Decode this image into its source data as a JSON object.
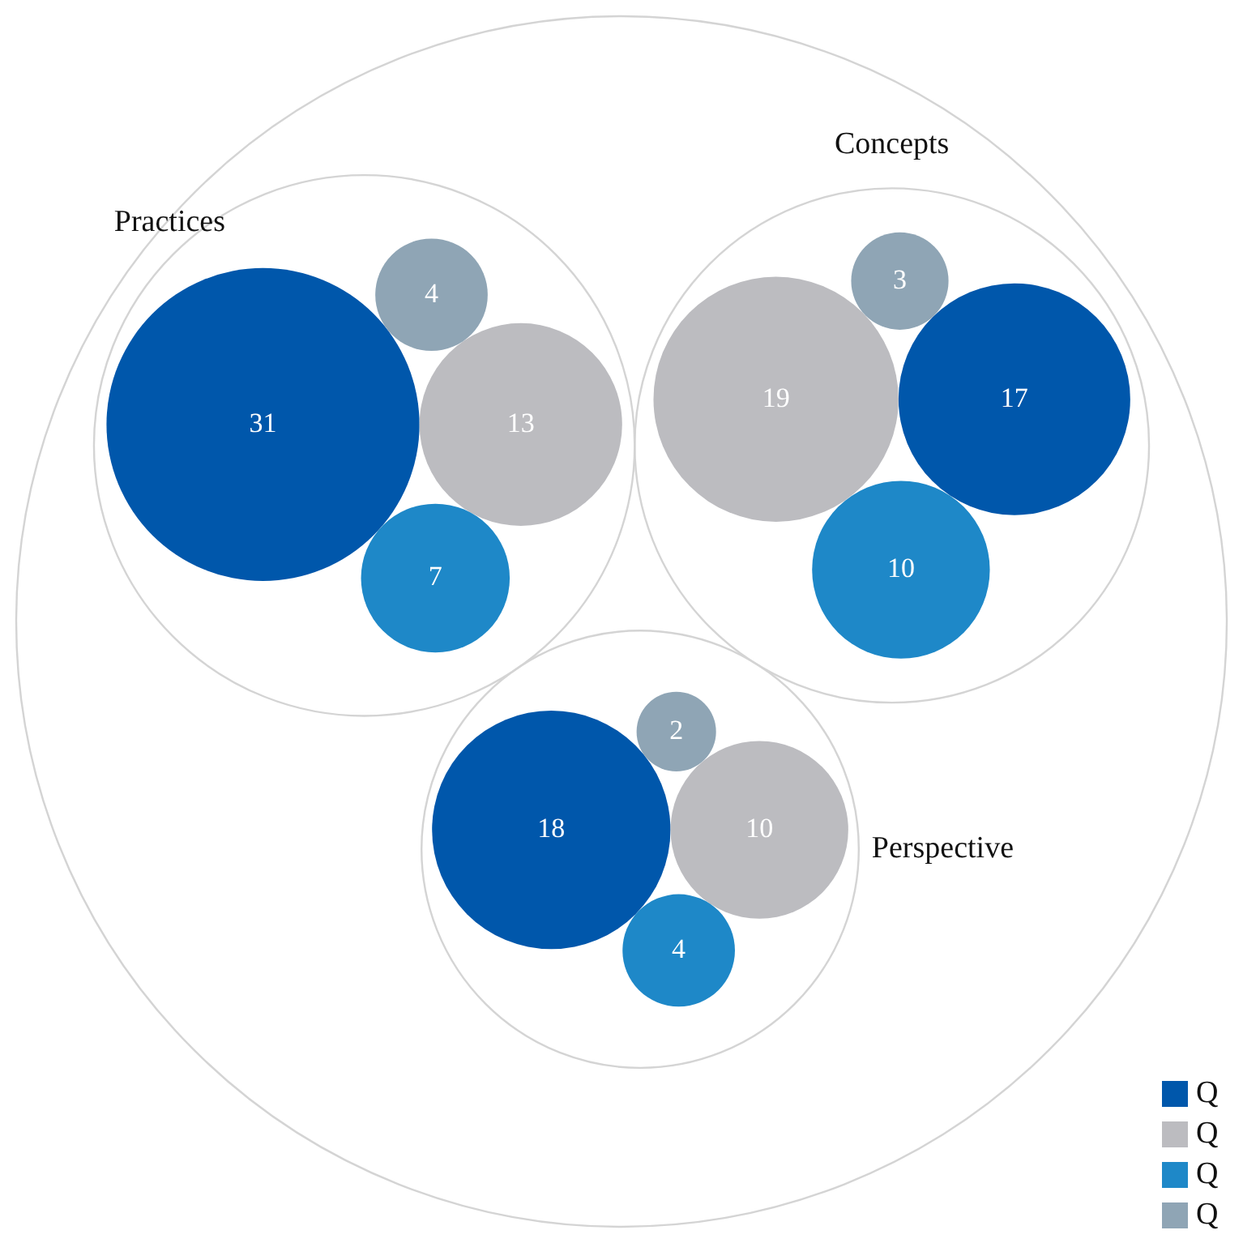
{
  "chart_data": {
    "type": "other",
    "categories": [
      "Practices",
      "Concepts",
      "Perspective"
    ],
    "series": [
      {
        "name": "Q",
        "color": "#0057ab",
        "values": [
          31,
          17,
          18
        ]
      },
      {
        "name": "Q",
        "color": "#bcbcc0",
        "values": [
          13,
          19,
          10
        ]
      },
      {
        "name": "Q",
        "color": "#1e88c8",
        "values": [
          7,
          10,
          4
        ]
      },
      {
        "name": "Q",
        "color": "#8fa5b5",
        "values": [
          4,
          3,
          2
        ]
      }
    ],
    "data_labels": true,
    "legend": "bottom right"
  }
}
